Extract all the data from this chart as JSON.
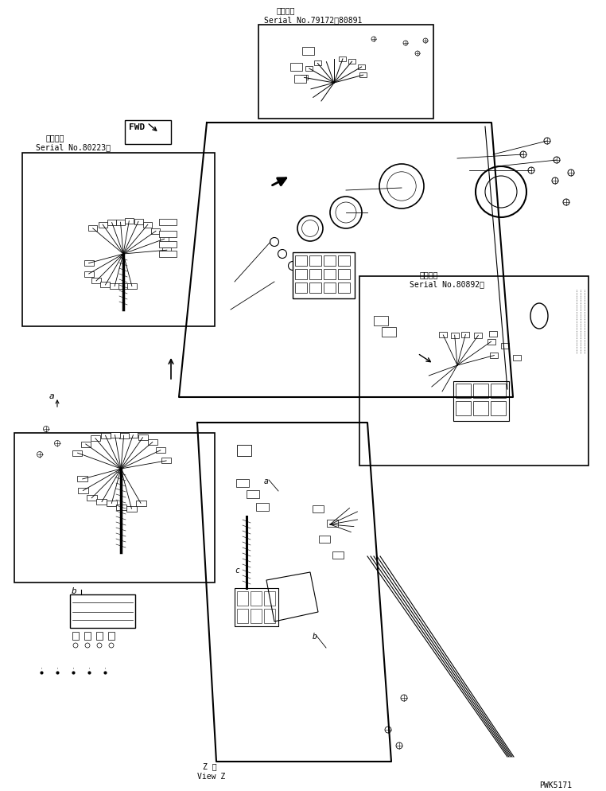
{
  "bg_color": "#ffffff",
  "fig_width": 7.62,
  "fig_height": 9.95,
  "dpi": 100,
  "labels": {
    "top_serial_label": "適用号機",
    "top_serial_value": "Serial No.79172～80891",
    "left_serial_label": "適用号機",
    "left_serial_value": "Serial No.80223～",
    "right_serial_label": "適用号機",
    "right_serial_value": "Serial No.80892～",
    "view_z_label1": "Z 視",
    "view_z_label2": "View Z",
    "part_num": "PWK5171"
  }
}
